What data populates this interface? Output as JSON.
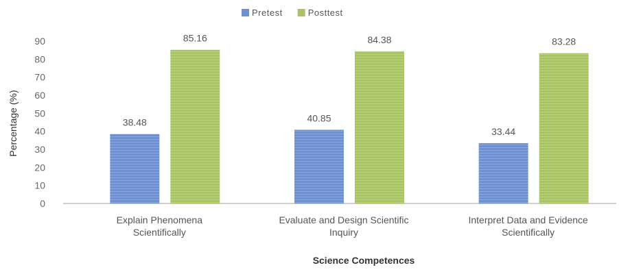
{
  "chart_data": {
    "type": "bar",
    "title": "",
    "xlabel": "Science Competences",
    "ylabel": "Percentage (%)",
    "ylim": [
      0,
      90
    ],
    "yticks": [
      0,
      10,
      20,
      30,
      40,
      50,
      60,
      70,
      80,
      90
    ],
    "grid": false,
    "legend_position": "top-center",
    "categories": [
      [
        "Explain Phenomena",
        "Scientifically"
      ],
      [
        "Evaluate and Design Scientific",
        "Inquiry"
      ],
      [
        "Interpret Data and Evidence",
        "Scientifically"
      ]
    ],
    "series": [
      {
        "name": "Pretest",
        "values": [
          38.48,
          40.85,
          33.44
        ],
        "labels": [
          "38.48",
          "40.85",
          "33.44"
        ],
        "color": "#6f8fcf"
      },
      {
        "name": "Posttest",
        "values": [
          85.16,
          84.38,
          83.28
        ],
        "labels": [
          "85.16",
          "84.38",
          "83.28"
        ],
        "color": "#a9c466"
      }
    ]
  }
}
